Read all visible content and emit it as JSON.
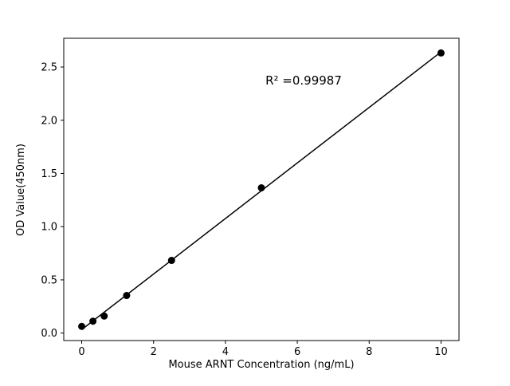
{
  "chart_data": {
    "type": "scatter",
    "title": "",
    "xlabel": "Mouse ARNT Concentration (ng/mL)",
    "ylabel": "OD Value(450nm)",
    "x": [
      0,
      0.3125,
      0.625,
      1.25,
      2.5,
      5,
      10
    ],
    "y": [
      0.063,
      0.112,
      0.16,
      0.353,
      0.683,
      1.365,
      2.632
    ],
    "xlim": [
      -0.5,
      10.5
    ],
    "ylim": [
      -0.07,
      2.77
    ],
    "xticks": [
      0,
      2,
      4,
      6,
      8,
      10
    ],
    "xtick_labels": [
      "0",
      "2",
      "4",
      "6",
      "8",
      "10"
    ],
    "yticks": [
      0.0,
      0.5,
      1.0,
      1.5,
      2.0,
      2.5
    ],
    "ytick_labels": [
      "0.0",
      "0.5",
      "1.0",
      "1.5",
      "2.0",
      "2.5"
    ],
    "annotation": {
      "text": "R² =0.99987"
    },
    "fit_line": true,
    "marker_color": "#000000",
    "line_color": "#000000",
    "grid": false,
    "legend": null
  }
}
